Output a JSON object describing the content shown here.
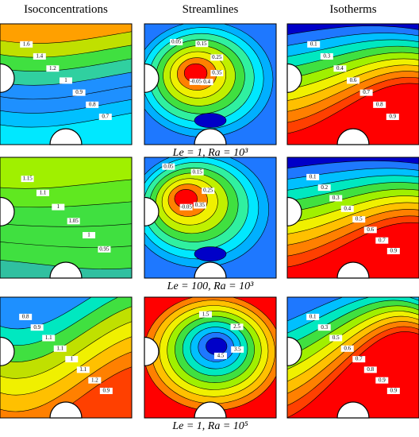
{
  "columns": [
    "Isoconcentrations",
    "Streamlines",
    "Isotherms"
  ],
  "rows": [
    {
      "caption": "Le = 1, Ra = 10³",
      "panels": [
        {
          "labels": [
            "1.6",
            "1.4",
            "1.2",
            "1",
            "0.9",
            "0.8",
            "0.7"
          ]
        },
        {
          "labels": [
            "0.05",
            "0.15",
            "0.25",
            "0.35",
            "0.4",
            "-0.05"
          ]
        },
        {
          "labels": [
            "0.1",
            "0.3",
            "0.4",
            "0.6",
            "0.7",
            "0.8",
            "0.9"
          ]
        }
      ]
    },
    {
      "caption": "Le = 100, Ra = 10³",
      "panels": [
        {
          "labels": [
            "1.15",
            "1.1",
            "1",
            "1.05",
            "1",
            "0.95"
          ]
        },
        {
          "labels": [
            "0.05",
            "0.15",
            "0.25",
            "0.35",
            "-0.05"
          ]
        },
        {
          "labels": [
            "0.1",
            "0.2",
            "0.3",
            "0.4",
            "0.5",
            "0.6",
            "0.7",
            "0.9"
          ]
        }
      ]
    },
    {
      "caption": "Le = 1, Ra = 10⁵",
      "panels": [
        {
          "labels": [
            "0.8",
            "0.9",
            "1.1",
            "1.1",
            "1",
            "1.1",
            "1.2",
            "0.9"
          ]
        },
        {
          "labels": [
            "1.5",
            "2.5",
            "3.5",
            "4.5"
          ]
        },
        {
          "labels": [
            "0.1",
            "0.3",
            "0.5",
            "0.6",
            "0.7",
            "0.8",
            "0.9",
            "0.9"
          ]
        }
      ]
    }
  ]
}
